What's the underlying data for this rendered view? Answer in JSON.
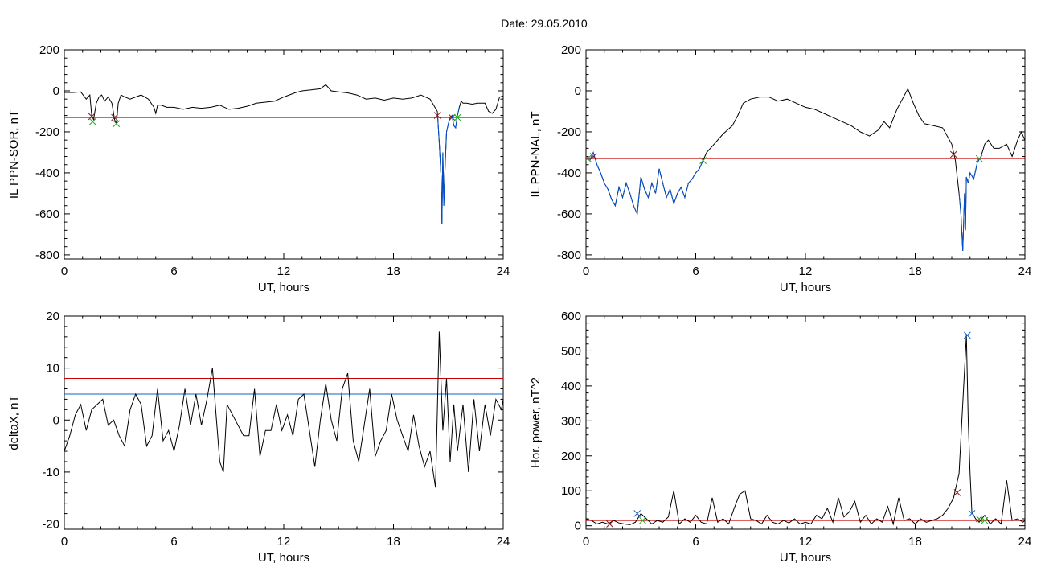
{
  "page": {
    "title": "Date:  29.05.2010"
  },
  "chart_data": [
    {
      "id": "sor",
      "type": "line",
      "xlabel": "UT, hours",
      "ylabel": "IL PPN-SOR, nT",
      "xlim": [
        0,
        24
      ],
      "ylim": [
        -820,
        200
      ],
      "xticks": [
        0,
        6,
        12,
        18,
        24
      ],
      "yticks": [
        -800,
        -600,
        -400,
        -200,
        0,
        200
      ],
      "grid": false,
      "colors": {
        "trace": "#000000",
        "threshold": "#cc0000",
        "event": "#0050d0"
      },
      "series": [
        {
          "role": "trace",
          "x": [
            0,
            0.5,
            0.9,
            1.2,
            1.4,
            1.5,
            1.6,
            1.75,
            1.9,
            2.05,
            2.2,
            2.4,
            2.6,
            2.75,
            2.85,
            2.95,
            3.1,
            3.3,
            3.6,
            3.9,
            4.2,
            4.6,
            4.9,
            5.0,
            5.1,
            5.3,
            5.6,
            6,
            6.5,
            7,
            7.5,
            8,
            8.5,
            9,
            9.5,
            10,
            10.5,
            11,
            11.5,
            12,
            12.3,
            12.6,
            13,
            13.5,
            14,
            14.3,
            14.6,
            15,
            15.5,
            16,
            16.5,
            17,
            17.5,
            18,
            18.5,
            19,
            19.5,
            20,
            20.2,
            20.4,
            20.5,
            20.6,
            20.65,
            20.7,
            20.75,
            20.8,
            20.9,
            21.0,
            21.1,
            21.2,
            21.3,
            21.4,
            21.5,
            21.6,
            21.7,
            21.8,
            22,
            22.3,
            22.6,
            22.8,
            23,
            23.2,
            23.4,
            23.6,
            23.8,
            24
          ],
          "y": [
            -8,
            -8,
            -5,
            -40,
            -20,
            -120,
            -140,
            -60,
            -30,
            -20,
            -50,
            -30,
            -60,
            -140,
            -160,
            -60,
            -20,
            -30,
            -40,
            -30,
            -20,
            -40,
            -80,
            -110,
            -70,
            -70,
            -80,
            -80,
            -90,
            -80,
            -85,
            -80,
            -70,
            -90,
            -85,
            -75,
            -60,
            -55,
            -50,
            -30,
            -20,
            -10,
            0,
            5,
            10,
            30,
            0,
            -5,
            -10,
            -20,
            -40,
            -35,
            -45,
            -35,
            -40,
            -35,
            -20,
            -40,
            -70,
            -100,
            -250,
            -420,
            -650,
            -300,
            -560,
            -420,
            -200,
            -160,
            -130,
            -120,
            -170,
            -180,
            -120,
            -80,
            -50,
            -60,
            -60,
            -65,
            -60,
            -60,
            -60,
            -100,
            -110,
            -90,
            -30,
            -25
          ]
        },
        {
          "role": "event",
          "x": [
            20.4,
            20.5,
            20.6,
            20.65,
            20.7,
            20.75,
            20.8,
            20.9,
            21.0,
            21.1,
            21.2,
            21.3,
            21.4,
            21.5,
            21.6
          ],
          "y": [
            -100,
            -250,
            -420,
            -650,
            -300,
            -560,
            -420,
            -200,
            -160,
            -130,
            -120,
            -170,
            -180,
            -120,
            -80
          ]
        }
      ],
      "threshold": -130,
      "markers": [
        {
          "x": 1.5,
          "y": -125,
          "color": "#8b1a1a"
        },
        {
          "x": 1.55,
          "y": -150,
          "color": "#22aa22"
        },
        {
          "x": 2.75,
          "y": -130,
          "color": "#8b1a1a"
        },
        {
          "x": 2.85,
          "y": -160,
          "color": "#22aa22"
        },
        {
          "x": 20.4,
          "y": -120,
          "color": "#8b1a1a"
        },
        {
          "x": 21.2,
          "y": -130,
          "color": "#8b1a1a"
        },
        {
          "x": 21.5,
          "y": -130,
          "color": "#22aa22"
        }
      ]
    },
    {
      "id": "nal",
      "type": "line",
      "xlabel": "UT, hours",
      "ylabel": "IL PPN-NAL, nT",
      "xlim": [
        0,
        24
      ],
      "ylim": [
        -820,
        200
      ],
      "xticks": [
        0,
        6,
        12,
        18,
        24
      ],
      "yticks": [
        -800,
        -600,
        -400,
        -200,
        0,
        200
      ],
      "grid": false,
      "colors": {
        "trace": "#000000",
        "threshold": "#cc0000",
        "event": "#0050d0"
      },
      "series": [
        {
          "role": "trace",
          "x": [
            0,
            0.2,
            0.4,
            0.6,
            0.8,
            1,
            1.2,
            1.4,
            1.6,
            1.8,
            2,
            2.2,
            2.4,
            2.6,
            2.8,
            3,
            3.2,
            3.4,
            3.6,
            3.8,
            4,
            4.2,
            4.4,
            4.6,
            4.8,
            5,
            5.2,
            5.4,
            5.6,
            5.8,
            6,
            6.2,
            6.4,
            6.6,
            7,
            7.5,
            8,
            8.3,
            8.6,
            9,
            9.5,
            10,
            10.5,
            11,
            11.5,
            12,
            12.5,
            13,
            13.5,
            14,
            14.5,
            15,
            15.5,
            16,
            16.3,
            16.6,
            17,
            17.3,
            17.6,
            17.9,
            18.2,
            18.5,
            19,
            19.5,
            20,
            20.2,
            20.4,
            20.5,
            20.6,
            20.7,
            20.75,
            20.8,
            20.9,
            21,
            21.2,
            21.4,
            21.6,
            21.8,
            22,
            22.3,
            22.6,
            23,
            23.3,
            23.6,
            23.8,
            24
          ],
          "y": [
            -320,
            -340,
            -300,
            -360,
            -400,
            -450,
            -480,
            -530,
            -560,
            -470,
            -520,
            -450,
            -500,
            -560,
            -600,
            -420,
            -480,
            -520,
            -450,
            -500,
            -380,
            -450,
            -520,
            -480,
            -550,
            -500,
            -470,
            -520,
            -450,
            -430,
            -400,
            -380,
            -340,
            -300,
            -260,
            -210,
            -170,
            -120,
            -60,
            -40,
            -30,
            -30,
            -50,
            -40,
            -60,
            -80,
            -90,
            -110,
            -130,
            -150,
            -170,
            -200,
            -220,
            -190,
            -150,
            -180,
            -90,
            -40,
            10,
            -60,
            -120,
            -160,
            -170,
            -180,
            -260,
            -340,
            -500,
            -600,
            -780,
            -500,
            -680,
            -420,
            -450,
            -400,
            -430,
            -350,
            -320,
            -260,
            -240,
            -280,
            -280,
            -260,
            -320,
            -240,
            -200,
            -240
          ]
        },
        {
          "role": "event",
          "x": [
            0,
            0.2,
            0.4,
            0.6,
            0.8,
            1,
            1.2,
            1.4,
            1.6,
            1.8,
            2,
            2.2,
            2.4,
            2.6,
            2.8,
            3,
            3.2,
            3.4,
            3.6,
            3.8,
            4,
            4.2,
            4.4,
            4.6,
            4.8,
            5,
            5.2,
            5.4,
            5.6,
            5.8,
            6,
            6.2,
            6.4
          ],
          "y": [
            -320,
            -340,
            -300,
            -360,
            -400,
            -450,
            -480,
            -530,
            -560,
            -470,
            -520,
            -450,
            -500,
            -560,
            -600,
            -420,
            -480,
            -520,
            -450,
            -500,
            -380,
            -450,
            -520,
            -480,
            -550,
            -500,
            -470,
            -520,
            -450,
            -430,
            -400,
            -380,
            -340
          ]
        },
        {
          "role": "event",
          "x": [
            20.4,
            20.5,
            20.6,
            20.7,
            20.75,
            20.8,
            20.9,
            21,
            21.2,
            21.4,
            21.6
          ],
          "y": [
            -500,
            -600,
            -780,
            -500,
            -680,
            -420,
            -450,
            -400,
            -430,
            -350,
            -320
          ]
        }
      ],
      "threshold": -330,
      "markers": [
        {
          "x": 0.1,
          "y": -330,
          "color": "#22aa22"
        },
        {
          "x": 0.4,
          "y": -320,
          "color": "#8b1a1a"
        },
        {
          "x": 6.4,
          "y": -340,
          "color": "#22aa22"
        },
        {
          "x": 20.1,
          "y": -310,
          "color": "#8b1a1a"
        },
        {
          "x": 21.5,
          "y": -330,
          "color": "#22aa22"
        }
      ]
    },
    {
      "id": "deltax",
      "type": "line",
      "xlabel": "UT, hours",
      "ylabel": "deltaX, nT",
      "xlim": [
        0,
        24
      ],
      "ylim": [
        -21,
        20
      ],
      "xticks": [
        0,
        6,
        12,
        18,
        24
      ],
      "yticks": [
        -20,
        -10,
        0,
        10,
        20
      ],
      "grid": false,
      "colors": {
        "trace": "#000000",
        "threshold": "#cc0000",
        "threshold2": "#1060c0"
      },
      "series": [
        {
          "role": "trace",
          "x": [
            0,
            0.3,
            0.6,
            0.9,
            1.2,
            1.5,
            1.8,
            2.1,
            2.4,
            2.7,
            3,
            3.3,
            3.6,
            3.9,
            4.2,
            4.5,
            4.8,
            5.1,
            5.4,
            5.7,
            6,
            6.3,
            6.6,
            6.9,
            7.2,
            7.5,
            7.8,
            8.1,
            8.3,
            8.5,
            8.7,
            8.9,
            9.2,
            9.5,
            9.8,
            10.1,
            10.4,
            10.7,
            11,
            11.3,
            11.6,
            11.9,
            12.2,
            12.5,
            12.8,
            13.1,
            13.4,
            13.7,
            14,
            14.3,
            14.6,
            14.9,
            15.2,
            15.5,
            15.8,
            16.1,
            16.4,
            16.7,
            17,
            17.3,
            17.6,
            17.9,
            18.2,
            18.5,
            18.8,
            19.1,
            19.4,
            19.7,
            20,
            20.3,
            20.5,
            20.7,
            20.9,
            21.1,
            21.3,
            21.5,
            21.8,
            22.1,
            22.4,
            22.7,
            23,
            23.3,
            23.6,
            23.9,
            24
          ],
          "y": [
            -6,
            -3,
            1,
            3,
            -2,
            2,
            3,
            4,
            -1,
            0,
            -3,
            -5,
            2,
            5,
            3,
            -5,
            -3,
            6,
            -4,
            -2,
            -6,
            -1,
            6,
            -1,
            5,
            -1,
            4,
            10,
            1,
            -8,
            -10,
            3,
            1,
            -1,
            -3,
            -3,
            6,
            -7,
            -2,
            -2,
            3,
            -2,
            1,
            -3,
            4,
            5,
            -2,
            -9,
            0,
            7,
            0,
            -4,
            6,
            9,
            -4,
            -8,
            -1,
            6,
            -7,
            -4,
            -2,
            5,
            0,
            -3,
            -6,
            1,
            -5,
            -9,
            -6,
            -13,
            17,
            -2,
            8,
            -8,
            3,
            -6,
            3,
            -10,
            4,
            -6,
            3,
            -3,
            4,
            2,
            4
          ]
        }
      ],
      "threshold": 8,
      "threshold2": 5
    },
    {
      "id": "power",
      "type": "line",
      "xlabel": "UT, hours",
      "ylabel": "Hor. power, nT^2",
      "xlim": [
        0,
        24
      ],
      "ylim": [
        -10,
        600
      ],
      "xticks": [
        0,
        6,
        12,
        18,
        24
      ],
      "yticks": [
        0,
        100,
        200,
        300,
        400,
        500,
        600
      ],
      "grid": false,
      "colors": {
        "trace": "#000000",
        "threshold": "#cc0000"
      },
      "series": [
        {
          "role": "trace",
          "x": [
            0,
            0.3,
            0.6,
            0.9,
            1.2,
            1.5,
            1.8,
            2.1,
            2.4,
            2.7,
            3,
            3.3,
            3.6,
            3.9,
            4.2,
            4.5,
            4.8,
            5.1,
            5.4,
            5.7,
            6,
            6.3,
            6.6,
            6.9,
            7.2,
            7.5,
            7.8,
            8.1,
            8.4,
            8.7,
            9,
            9.3,
            9.6,
            9.9,
            10.2,
            10.5,
            10.8,
            11.1,
            11.4,
            11.7,
            12,
            12.3,
            12.6,
            12.9,
            13.2,
            13.5,
            13.8,
            14.1,
            14.4,
            14.7,
            15,
            15.3,
            15.6,
            15.9,
            16.2,
            16.5,
            16.8,
            17.1,
            17.4,
            17.7,
            18,
            18.3,
            18.6,
            18.9,
            19.2,
            19.5,
            19.8,
            20.1,
            20.4,
            20.6,
            20.8,
            20.9,
            21.0,
            21.1,
            21.3,
            21.5,
            21.8,
            22.1,
            22.4,
            22.7,
            23,
            23.3,
            23.6,
            23.9,
            24
          ],
          "y": [
            20,
            15,
            5,
            10,
            5,
            15,
            8,
            5,
            3,
            10,
            35,
            20,
            5,
            15,
            10,
            25,
            100,
            5,
            20,
            10,
            30,
            10,
            5,
            80,
            10,
            20,
            5,
            50,
            90,
            100,
            20,
            15,
            5,
            30,
            10,
            5,
            15,
            8,
            20,
            5,
            10,
            5,
            30,
            20,
            50,
            10,
            80,
            25,
            40,
            70,
            10,
            30,
            5,
            20,
            10,
            55,
            5,
            80,
            15,
            20,
            5,
            20,
            10,
            15,
            20,
            30,
            50,
            80,
            150,
            350,
            545,
            300,
            150,
            40,
            20,
            10,
            30,
            5,
            20,
            5,
            130,
            15,
            20,
            10,
            15
          ]
        }
      ],
      "threshold": 15,
      "markers": [
        {
          "x": 1.3,
          "y": 5,
          "color": "#8b1a1a"
        },
        {
          "x": 2.8,
          "y": 35,
          "color": "#1060c0"
        },
        {
          "x": 3.1,
          "y": 15,
          "color": "#22aa22"
        },
        {
          "x": 20.3,
          "y": 95,
          "color": "#8b1a1a"
        },
        {
          "x": 20.85,
          "y": 545,
          "color": "#1060c0"
        },
        {
          "x": 21.1,
          "y": 35,
          "color": "#1060c0"
        },
        {
          "x": 21.5,
          "y": 20,
          "color": "#22aa22"
        },
        {
          "x": 21.8,
          "y": 15,
          "color": "#22aa22"
        }
      ]
    }
  ]
}
